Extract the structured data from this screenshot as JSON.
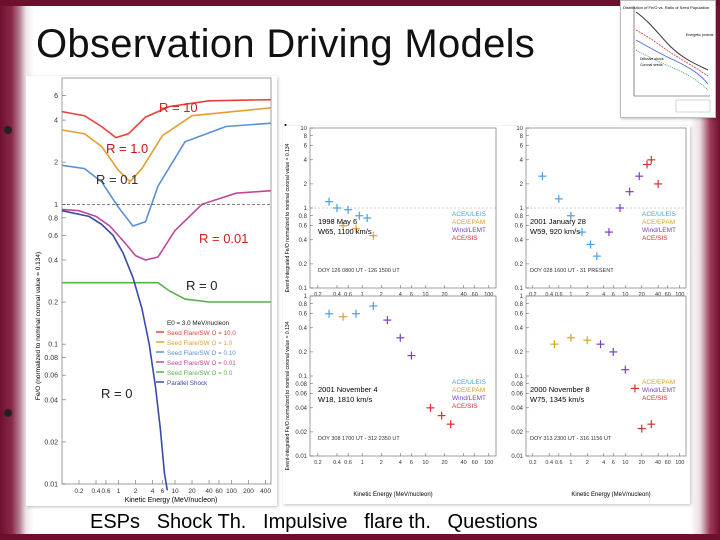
{
  "slide": {
    "title": "Observation Driving Models",
    "footer": "ESPs   Shock Th.   Impulsive   flare th.   Questions"
  },
  "main_plot": {
    "y_axis_label": "Fe/O (normalized to nominal coronal value = 0.134)",
    "y_ticks": [
      "6",
      "4",
      "2",
      "1",
      "0.8",
      "0.6",
      "0.4",
      "0.2",
      "0.1",
      "0.08",
      "0.06",
      "0.04",
      "0.02",
      "0.01"
    ],
    "x_ticks": [
      "0.2",
      "0.4",
      "0.6",
      "1",
      "2",
      "4",
      "6",
      "10",
      "20",
      "40",
      "60",
      "100",
      "200",
      "400"
    ],
    "x_axis_label": "Kinetic Energy (MeV/nucleon)",
    "curve_labels": [
      "R = 10",
      "R = 1.0",
      "R = 0.1",
      "R = 0.01",
      "R = 0",
      "R = 0"
    ],
    "legend": [
      "E0 = 3.0 MeV/nucleon",
      "Seed Flare/SW O = 10.0",
      "Seed Flare/SW O = 1.0",
      "Seed Flare/SW O = 0.10",
      "Seed Flare/SW O = 0.01",
      "Seed Flare/SW O = 0.0",
      "Parallel Shock"
    ],
    "colors": {
      "r10": "#e8413a",
      "r1": "#e0a030",
      "r01": "#5b8fd6",
      "r001": "#c0479a",
      "r0": "#55b24a",
      "parallel": "#3a4aa8"
    }
  },
  "event_panels": {
    "y_axis_label": "Event-integrated Fe/O normalized to nominal coronal value = 0.134",
    "x_axis_label": "Kinetic Energy (MeV/nucleon)",
    "x_ticks": [
      "0.2",
      "0.4",
      "0.6",
      "1",
      "2",
      "4",
      "6",
      "10",
      "20",
      "40",
      "60",
      "100"
    ],
    "y_ticks_top": [
      "10",
      "8",
      "6",
      "4",
      "2",
      "1",
      "0.8",
      "0.6",
      "0.4",
      "0.2",
      "0.1"
    ],
    "y_ticks_bottom": [
      "1",
      "0.8",
      "0.6",
      "0.4",
      "0.2",
      "0.1",
      "0.08",
      "0.06",
      "0.04",
      "0.02",
      "0.01"
    ],
    "events": [
      {
        "date": "1998 May 6",
        "info": "W65, 1100 km/s",
        "doy": "DOY 126 0800 UT - 126 1500 UT",
        "instruments": [
          "ACE/ULEIS",
          "ACE/EPAM",
          "Wind/LEMT",
          "ACE/SIS"
        ]
      },
      {
        "date": "2001 January 28",
        "info": "W59, 920 km/s",
        "doy": "DOY 028 1600 UT - 31 PRESENT",
        "instruments": [
          "ACE/ULEIS",
          "ACE/EPAM",
          "Wind/LEMT",
          "ACE/SIS"
        ]
      },
      {
        "date": "2001 November 4",
        "info": "W18, 1810 km/s",
        "doy": "DOY 308 1700 UT - 312 2350 UT",
        "instruments": [
          "ACE/ULEIS",
          "ACE/EPAM",
          "Wind/LEMT",
          "ACE/SIS"
        ]
      },
      {
        "date": "2000 November 8",
        "info": "W75, 1345 km/s",
        "doy": "DOY 313 2300 UT - 316 1156 UT",
        "instruments": [
          "ACE/EPAM",
          "Wind/LEMT",
          "ACE/SIS"
        ]
      }
    ],
    "inst_colors": {
      "ACE/ULEIS": "#4aa0e0",
      "ACE/EPAM": "#e0a030",
      "Wind/LEMT": "#7a40c0",
      "ACE/SIS": "#d83030"
    }
  },
  "inset": {
    "title": "Distribution of Fe/O vs. Ratio of Seed Population",
    "labels": [
      "Energetic protons",
      "Diffusive shock",
      "Coronal seeds"
    ]
  }
}
